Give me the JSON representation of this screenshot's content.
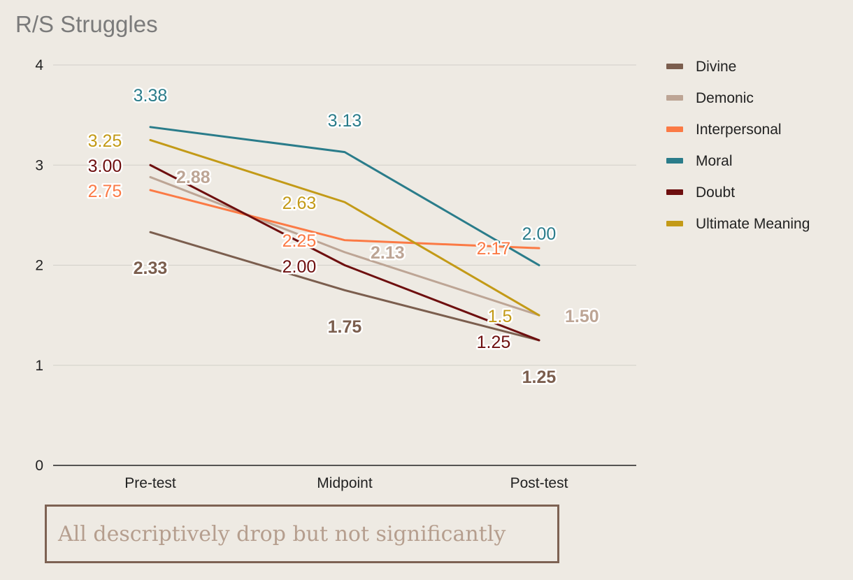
{
  "chart_data": {
    "type": "line",
    "title": "R/S Struggles",
    "categories": [
      "Pre-test",
      "Midpoint",
      "Post-test"
    ],
    "ylim": [
      0,
      4
    ],
    "yticks": [
      "0",
      "1",
      "2",
      "3",
      "4"
    ],
    "grid": true,
    "legend_position": "right",
    "series": [
      {
        "name": "Divine",
        "color": "#7b5e4e",
        "values": [
          2.33,
          1.75,
          1.25
        ],
        "labels": [
          "2.33",
          "1.75",
          "1.25"
        ],
        "bold": true
      },
      {
        "name": "Demonic",
        "color": "#bda595",
        "values": [
          2.88,
          2.13,
          1.5
        ],
        "labels": [
          "2.88",
          "2.13",
          "1.50"
        ],
        "bold": true
      },
      {
        "name": "Interpersonal",
        "color": "#fb7a45",
        "values": [
          2.75,
          2.25,
          2.17
        ],
        "labels": [
          "2.75",
          "2.25",
          "2.17"
        ],
        "bold": false
      },
      {
        "name": "Moral",
        "color": "#2a7c8a",
        "values": [
          3.38,
          3.13,
          2.0
        ],
        "labels": [
          "3.38",
          "3.13",
          "2.00"
        ],
        "bold": false
      },
      {
        "name": "Doubt",
        "color": "#6e0f0f",
        "values": [
          3.0,
          2.0,
          1.25
        ],
        "labels": [
          "3.00",
          "2.00",
          "1.25"
        ],
        "bold": false
      },
      {
        "name": "Ultimate Meaning",
        "color": "#c39a17",
        "values": [
          3.25,
          2.63,
          1.5
        ],
        "labels": [
          "3.25",
          "2.63",
          "1.5"
        ],
        "bold": false
      }
    ]
  },
  "note": {
    "text": "All descriptively drop but not significantly"
  },
  "colors": {
    "background": "#eeeae3",
    "grid": "#d2cfc9",
    "axis": "#222222",
    "note_border": "#7d6253",
    "note_text": "#b59e8e"
  }
}
